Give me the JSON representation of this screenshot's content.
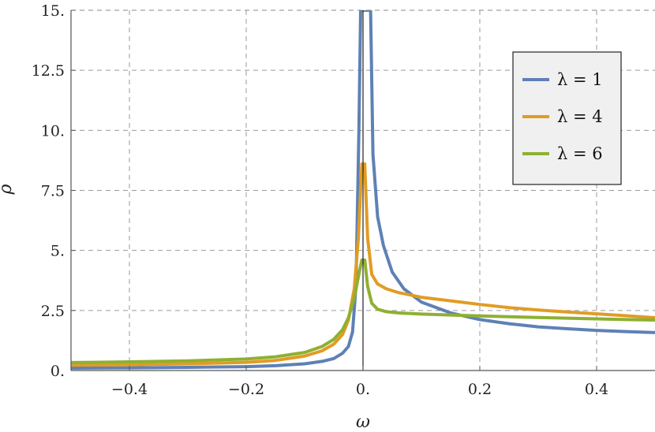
{
  "chart_data": {
    "type": "line",
    "title": "",
    "xlabel": "ω",
    "ylabel": "ρ",
    "xlim": [
      -0.5,
      0.5
    ],
    "ylim": [
      0,
      15
    ],
    "x_ticks": [
      {
        "value": -0.4,
        "label": "−0.4"
      },
      {
        "value": -0.2,
        "label": "−0.2"
      },
      {
        "value": 0.0,
        "label": "0."
      },
      {
        "value": 0.2,
        "label": "0.2"
      },
      {
        "value": 0.4,
        "label": "0.4"
      }
    ],
    "y_ticks": [
      {
        "value": 0,
        "label": "0."
      },
      {
        "value": 2.5,
        "label": "2.5"
      },
      {
        "value": 5,
        "label": "5."
      },
      {
        "value": 7.5,
        "label": "7.5"
      },
      {
        "value": 10,
        "label": "10."
      },
      {
        "value": 12.5,
        "label": "12.5"
      },
      {
        "value": 15,
        "label": "15."
      }
    ],
    "grid": true,
    "legend_position": "top-right",
    "series": [
      {
        "name": "λ = 1",
        "color": "#5e81b5",
        "points": [
          [
            -0.5,
            0.1
          ],
          [
            -0.4,
            0.11
          ],
          [
            -0.3,
            0.13
          ],
          [
            -0.2,
            0.16
          ],
          [
            -0.15,
            0.2
          ],
          [
            -0.1,
            0.28
          ],
          [
            -0.07,
            0.38
          ],
          [
            -0.05,
            0.5
          ],
          [
            -0.035,
            0.72
          ],
          [
            -0.025,
            1.0
          ],
          [
            -0.018,
            1.6
          ],
          [
            -0.012,
            3.5
          ],
          [
            -0.007,
            10.0
          ],
          [
            -0.004,
            15.0
          ],
          [
            0.013,
            15.0
          ],
          [
            0.017,
            9.0
          ],
          [
            0.025,
            6.4
          ],
          [
            0.035,
            5.2
          ],
          [
            0.05,
            4.1
          ],
          [
            0.07,
            3.4
          ],
          [
            0.1,
            2.85
          ],
          [
            0.15,
            2.4
          ],
          [
            0.2,
            2.12
          ],
          [
            0.25,
            1.95
          ],
          [
            0.3,
            1.82
          ],
          [
            0.35,
            1.74
          ],
          [
            0.4,
            1.67
          ],
          [
            0.45,
            1.62
          ],
          [
            0.5,
            1.58
          ]
        ]
      },
      {
        "name": "λ = 4",
        "color": "#e19c24",
        "points": [
          [
            -0.5,
            0.22
          ],
          [
            -0.4,
            0.24
          ],
          [
            -0.3,
            0.28
          ],
          [
            -0.2,
            0.34
          ],
          [
            -0.15,
            0.42
          ],
          [
            -0.1,
            0.6
          ],
          [
            -0.07,
            0.82
          ],
          [
            -0.05,
            1.1
          ],
          [
            -0.035,
            1.5
          ],
          [
            -0.025,
            2.1
          ],
          [
            -0.015,
            3.4
          ],
          [
            -0.008,
            5.5
          ],
          [
            -0.002,
            8.6
          ],
          [
            0.003,
            8.6
          ],
          [
            0.008,
            5.5
          ],
          [
            0.015,
            4.0
          ],
          [
            0.025,
            3.6
          ],
          [
            0.04,
            3.4
          ],
          [
            0.06,
            3.25
          ],
          [
            0.1,
            3.05
          ],
          [
            0.15,
            2.9
          ],
          [
            0.2,
            2.75
          ],
          [
            0.25,
            2.62
          ],
          [
            0.3,
            2.52
          ],
          [
            0.35,
            2.44
          ],
          [
            0.4,
            2.36
          ],
          [
            0.45,
            2.28
          ],
          [
            0.5,
            2.2
          ]
        ]
      },
      {
        "name": "λ = 6",
        "color": "#8fb032",
        "points": [
          [
            -0.5,
            0.33
          ],
          [
            -0.4,
            0.36
          ],
          [
            -0.3,
            0.4
          ],
          [
            -0.2,
            0.48
          ],
          [
            -0.15,
            0.57
          ],
          [
            -0.1,
            0.75
          ],
          [
            -0.07,
            1.0
          ],
          [
            -0.05,
            1.3
          ],
          [
            -0.035,
            1.7
          ],
          [
            -0.025,
            2.2
          ],
          [
            -0.015,
            3.0
          ],
          [
            -0.008,
            3.9
          ],
          [
            -0.002,
            4.6
          ],
          [
            0.003,
            4.6
          ],
          [
            0.008,
            3.5
          ],
          [
            0.015,
            2.8
          ],
          [
            0.025,
            2.55
          ],
          [
            0.04,
            2.45
          ],
          [
            0.06,
            2.4
          ],
          [
            0.1,
            2.35
          ],
          [
            0.15,
            2.31
          ],
          [
            0.2,
            2.27
          ],
          [
            0.25,
            2.24
          ],
          [
            0.3,
            2.21
          ],
          [
            0.35,
            2.18
          ],
          [
            0.4,
            2.15
          ],
          [
            0.45,
            2.12
          ],
          [
            0.5,
            2.1
          ]
        ]
      }
    ]
  }
}
